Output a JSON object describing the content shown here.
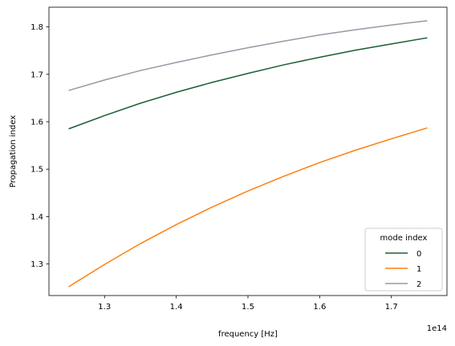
{
  "chart_data": {
    "type": "line",
    "xlabel": "frequency [Hz]",
    "ylabel": "Propagation index",
    "x_offset_label": "1e14",
    "xlim": [
      1.2225,
      1.7775
    ],
    "ylim": [
      1.2335,
      1.8415
    ],
    "x_ticks": [
      1.3,
      1.4,
      1.5,
      1.6,
      1.7
    ],
    "x_tick_labels": [
      "1.3",
      "1.4",
      "1.5",
      "1.6",
      "1.7"
    ],
    "y_ticks": [
      1.3,
      1.4,
      1.5,
      1.6,
      1.7,
      1.8
    ],
    "y_tick_labels": [
      "1.3",
      "1.4",
      "1.5",
      "1.6",
      "1.7",
      "1.8"
    ],
    "x": [
      1.25,
      1.3,
      1.35,
      1.4,
      1.45,
      1.5,
      1.55,
      1.6,
      1.65,
      1.7,
      1.75
    ],
    "legend": {
      "title": "mode index",
      "placement": "lower right"
    },
    "series": [
      {
        "name": "0",
        "color": "#1a5e35",
        "values": [
          1.585,
          1.613,
          1.639,
          1.662,
          1.683,
          1.702,
          1.72,
          1.736,
          1.751,
          1.764,
          1.777
        ]
      },
      {
        "name": "1",
        "color": "#ff7f0e",
        "values": [
          1.252,
          1.299,
          1.343,
          1.383,
          1.42,
          1.454,
          1.485,
          1.514,
          1.54,
          1.564,
          1.587
        ]
      },
      {
        "name": "2",
        "color": "#9a97a6",
        "values": [
          1.666,
          1.688,
          1.708,
          1.725,
          1.741,
          1.756,
          1.77,
          1.783,
          1.794,
          1.804,
          1.813
        ]
      }
    ],
    "grid": false
  }
}
